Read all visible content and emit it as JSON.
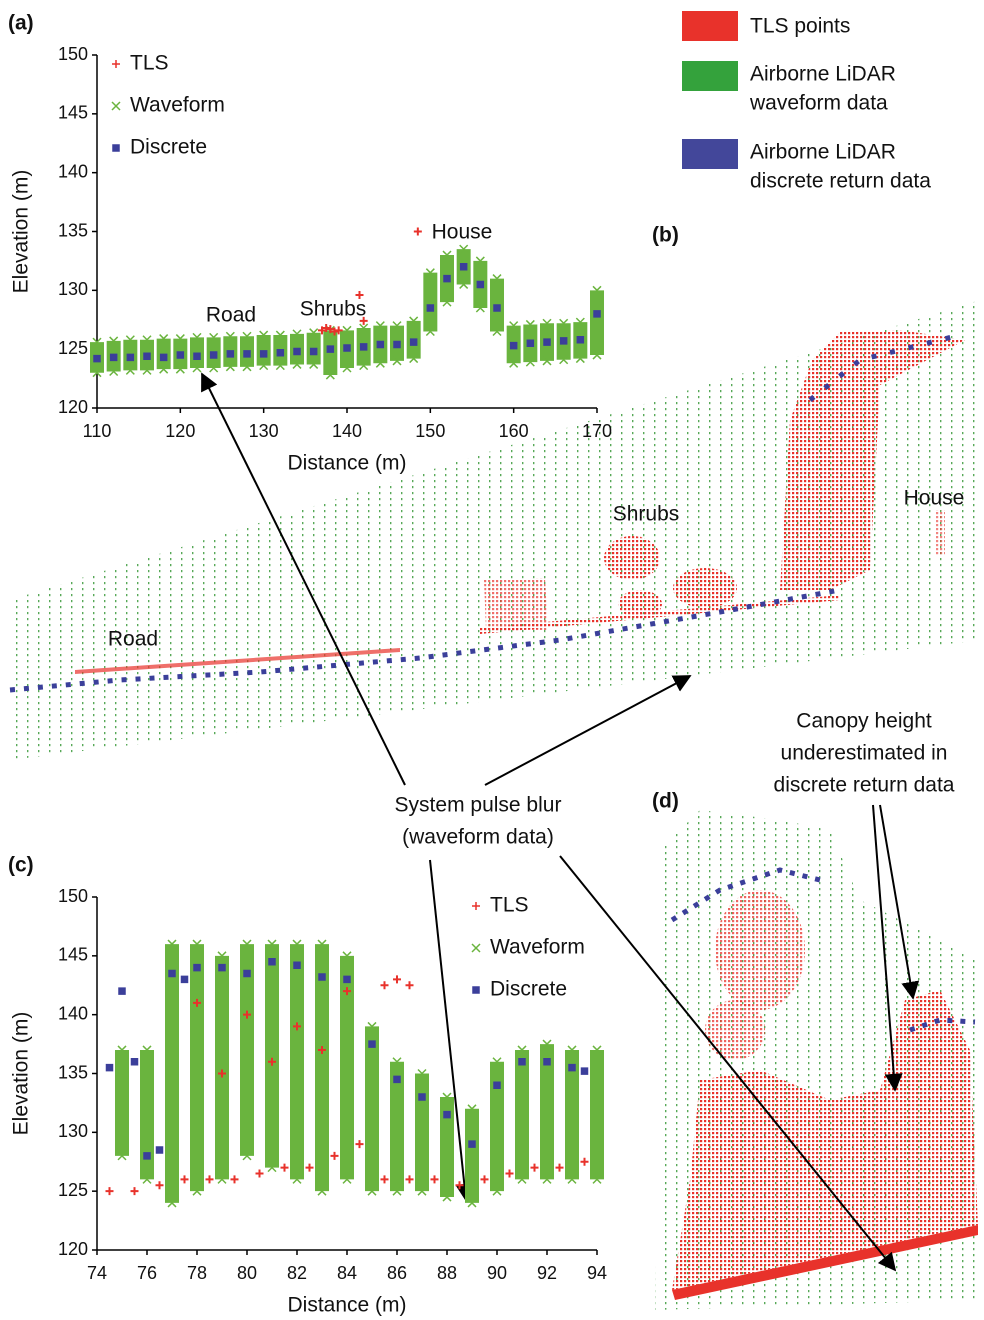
{
  "panels": [
    "(a)",
    "(b)",
    "(c)",
    "(d)"
  ],
  "legend": [
    {
      "lines": [
        "TLS points"
      ]
    },
    {
      "lines": [
        "Airborne LiDAR",
        "waveform data"
      ]
    },
    {
      "lines": [
        "Airborne LiDAR",
        "discrete return data"
      ]
    }
  ],
  "scene_labels": [
    "Road",
    "Shrubs",
    "House"
  ],
  "callouts": {
    "pulse_blur": [
      "System pulse blur",
      "(waveform data)"
    ],
    "canopy": [
      "Canopy height",
      "underestimated in",
      "discrete return data"
    ]
  },
  "chart_data": [
    {
      "type": "scatter",
      "x_label": "Distance (m)",
      "y_label": "Elevation (m)",
      "xlim": [
        110,
        170
      ],
      "ylim": [
        120,
        150
      ],
      "xticks": [
        110,
        120,
        130,
        140,
        150,
        160,
        170
      ],
      "yticks": [
        120,
        125,
        130,
        135,
        140,
        145,
        150
      ],
      "annotations": [
        "Road",
        "Shrubs",
        "House"
      ],
      "series": [
        {
          "name": "TLS",
          "color": "#e8322b",
          "marker": "plus",
          "x": [
            137,
            137.5,
            138,
            138.5,
            139,
            141.5,
            142,
            148.5
          ],
          "values": [
            126.6,
            126.8,
            126.7,
            126.5,
            126.6,
            129.6,
            127.4,
            135
          ]
        },
        {
          "name": "Waveform",
          "color": "#6ab43e",
          "marker": "cross",
          "x": [
            110,
            110,
            112,
            112,
            114,
            114,
            116,
            116,
            118,
            118,
            120,
            120,
            122,
            122,
            124,
            124,
            126,
            126,
            128,
            128,
            130,
            130,
            132,
            132,
            134,
            134,
            136,
            136,
            138,
            138,
            140,
            140,
            142,
            142,
            144,
            144,
            146,
            146,
            148,
            148,
            150,
            150,
            152,
            152,
            154,
            154,
            156,
            156,
            158,
            158,
            160,
            160,
            162,
            162,
            164,
            164,
            166,
            166,
            168,
            168,
            170,
            170
          ],
          "values": [
            125.6,
            123.0,
            125.7,
            123.1,
            125.8,
            123.2,
            125.8,
            123.2,
            125.9,
            123.3,
            125.9,
            123.3,
            126.0,
            123.4,
            126.0,
            123.4,
            126.1,
            123.5,
            126.1,
            123.5,
            126.2,
            123.6,
            126.2,
            123.6,
            126.3,
            123.7,
            126.4,
            123.7,
            126.6,
            122.8,
            126.6,
            123.4,
            126.8,
            123.6,
            127.0,
            123.8,
            127.0,
            124.0,
            127.4,
            124.2,
            131.5,
            126.5,
            133.0,
            129.0,
            133.5,
            130.5,
            132.5,
            128.5,
            131.0,
            126.5,
            127.0,
            123.8,
            127.1,
            123.9,
            127.2,
            124.0,
            127.2,
            124.1,
            127.3,
            124.2,
            130.0,
            124.5
          ]
        },
        {
          "name": "Discrete",
          "color": "#3b3f9a",
          "marker": "star",
          "x": [
            110,
            112,
            114,
            116,
            118,
            120,
            122,
            124,
            126,
            128,
            130,
            132,
            134,
            136,
            138,
            140,
            142,
            144,
            146,
            148,
            150,
            152,
            154,
            156,
            158,
            160,
            162,
            164,
            166,
            168,
            170
          ],
          "values": [
            124.2,
            124.3,
            124.3,
            124.4,
            124.3,
            124.5,
            124.4,
            124.5,
            124.6,
            124.6,
            124.6,
            124.7,
            124.8,
            124.8,
            125.0,
            125.1,
            125.2,
            125.4,
            125.4,
            125.6,
            128.5,
            131,
            132,
            130.5,
            128.5,
            125.3,
            125.5,
            125.6,
            125.7,
            125.8,
            128
          ]
        }
      ]
    },
    {
      "type": "scatter",
      "x_label": "Distance (m)",
      "y_label": "Elevation (m)",
      "xlim": [
        74,
        94
      ],
      "ylim": [
        120,
        150
      ],
      "xticks": [
        74,
        76,
        78,
        80,
        82,
        84,
        86,
        88,
        90,
        92,
        94
      ],
      "yticks": [
        120,
        125,
        130,
        135,
        140,
        145,
        150
      ],
      "series": [
        {
          "name": "TLS",
          "color": "#e8322b",
          "marker": "plus",
          "x": [
            74.5,
            75.5,
            76.5,
            77.5,
            78.5,
            79.5,
            80.5,
            81.5,
            82.5,
            83.5,
            84.5,
            85.5,
            86.5,
            87.5,
            88.5,
            89.5,
            90.5,
            91.5,
            92.5,
            93.5,
            78,
            80,
            82,
            84,
            79,
            81,
            83,
            85.5,
            86,
            86.5
          ],
          "values": [
            125,
            125,
            125.5,
            126,
            126,
            126,
            126.5,
            127,
            127,
            128,
            129,
            126,
            126,
            126,
            125.5,
            126,
            126.5,
            127,
            127,
            127.5,
            141,
            140,
            139,
            142,
            135,
            136,
            137,
            142.5,
            143,
            142.5
          ]
        },
        {
          "name": "Waveform",
          "color": "#6ab43e",
          "marker": "cross",
          "x": [
            75,
            75,
            76,
            76,
            77,
            77,
            78,
            78,
            79,
            79,
            80,
            80,
            81,
            81,
            82,
            82,
            83,
            83,
            84,
            84,
            85,
            85,
            86,
            86,
            87,
            87,
            88,
            88,
            89,
            89,
            90,
            90,
            91,
            91,
            92,
            92,
            93,
            93,
            94,
            94
          ],
          "values": [
            137,
            128,
            137,
            126,
            146,
            124,
            146,
            125,
            145,
            126,
            146,
            128,
            146,
            127,
            146,
            126,
            146,
            125,
            145,
            126,
            139,
            125,
            136,
            125,
            135,
            125,
            133,
            124.5,
            132,
            124,
            136,
            125,
            137,
            126,
            137.5,
            126,
            137,
            126,
            137,
            126
          ]
        },
        {
          "name": "Discrete",
          "color": "#3b3f9a",
          "marker": "star",
          "x": [
            74.5,
            75,
            75.5,
            76,
            76.5,
            77,
            77.5,
            78,
            79,
            80,
            81,
            82,
            83,
            84,
            85,
            86,
            87,
            88,
            89,
            90,
            91,
            92,
            93,
            93.5
          ],
          "values": [
            135.5,
            142,
            136,
            128,
            128.5,
            143.5,
            143,
            144,
            144,
            143.5,
            144.5,
            144.2,
            143.2,
            143,
            137.5,
            134.5,
            133,
            131.5,
            129,
            134,
            136,
            136,
            135.5,
            135.2
          ]
        }
      ]
    }
  ]
}
